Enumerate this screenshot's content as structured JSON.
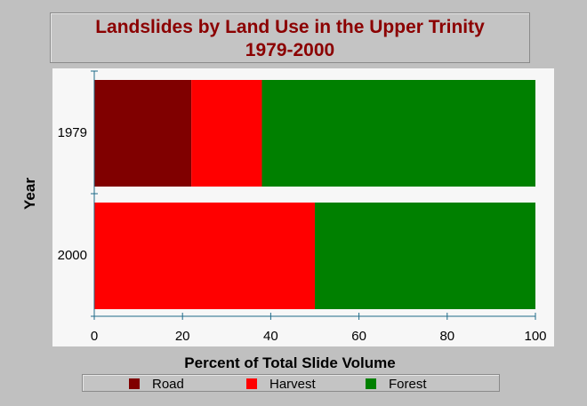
{
  "chart_data": {
    "type": "bar",
    "orientation": "horizontal",
    "stacked": true,
    "title": "Landslides by Land Use in the Upper Trinity",
    "subtitle": "1979-2000",
    "xlabel": "Percent of Total Slide Volume",
    "ylabel": "Year",
    "categories": [
      "1979",
      "2000"
    ],
    "xlim": [
      0,
      100
    ],
    "xticks": [
      "0",
      "20",
      "40",
      "60",
      "80",
      "100"
    ],
    "series": [
      {
        "name": "Road",
        "color": "#800000",
        "values": [
          22,
          0
        ]
      },
      {
        "name": "Harvest",
        "color": "#ff0000",
        "values": [
          16,
          50
        ]
      },
      {
        "name": "Forest",
        "color": "#008000",
        "values": [
          62,
          50
        ]
      }
    ],
    "grid": false,
    "legend_position": "bottom"
  }
}
